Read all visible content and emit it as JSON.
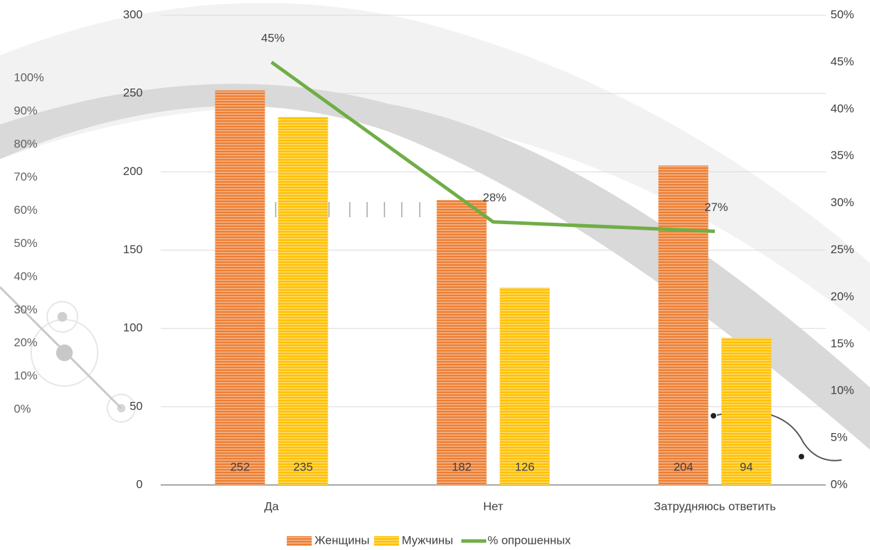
{
  "chart_data": {
    "type": "bar-line",
    "categories": [
      "Да",
      "Нет",
      "Затрудняюсь ответить"
    ],
    "series": [
      {
        "name": "Женщины",
        "color": "#ed7d31",
        "type": "bar",
        "values": [
          252,
          182,
          204
        ]
      },
      {
        "name": "Мужчины",
        "color": "#ffc000",
        "type": "bar",
        "values": [
          235,
          126,
          94
        ]
      },
      {
        "name": "% опрошенных",
        "color": "#70ad47",
        "type": "line",
        "axis": "y2",
        "values": [
          45,
          28,
          27
        ],
        "value_labels": [
          "45%",
          "28%",
          "27%"
        ]
      }
    ],
    "ylim": [
      0,
      300
    ],
    "yticks": [
      0,
      50,
      100,
      150,
      200,
      250,
      300
    ],
    "y2lim": [
      0,
      50
    ],
    "y2ticks": [
      {
        "value": 0,
        "label": "0%"
      },
      {
        "value": 5,
        "label": "5%"
      },
      {
        "value": 10,
        "label": "10%"
      },
      {
        "value": 15,
        "label": "15%"
      },
      {
        "value": 20,
        "label": "20%"
      },
      {
        "value": 25,
        "label": "25%"
      },
      {
        "value": 30,
        "label": "30%"
      },
      {
        "value": 35,
        "label": "35%"
      },
      {
        "value": 40,
        "label": "40%"
      },
      {
        "value": 45,
        "label": "45%"
      },
      {
        "value": 50,
        "label": "50%"
      }
    ],
    "grid": true,
    "legend": "bottom"
  },
  "background": {
    "labels": [
      "100%",
      "90%",
      "80%",
      "70%",
      "60%",
      "50%",
      "40%",
      "30%",
      "20%",
      "10%",
      "0%"
    ]
  }
}
